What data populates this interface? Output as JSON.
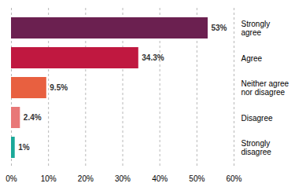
{
  "chart_data": {
    "type": "bar",
    "orientation": "horizontal",
    "categories": [
      "Strongly\nagree",
      "Agree",
      "Neither agree\nnor disagree",
      "Disagree",
      "Strongly\ndisagree"
    ],
    "values": [
      53,
      34.3,
      9.5,
      2.4,
      1
    ],
    "value_labels": [
      "53%",
      "34.3%",
      "9.5%",
      "2.4%",
      "1%"
    ],
    "data_labels": true,
    "colors": [
      "#6B2050",
      "#C01840",
      "#E86040",
      "#E87878",
      "#1AA898"
    ],
    "xlim": [
      0,
      60
    ],
    "xticks": [
      {
        "value": 0,
        "label": "0%"
      },
      {
        "value": 10,
        "label": "10%"
      },
      {
        "value": 20,
        "label": "20%"
      },
      {
        "value": 30,
        "label": "30%"
      },
      {
        "value": 40,
        "label": "40%"
      },
      {
        "value": 50,
        "label": "50%"
      },
      {
        "value": 60,
        "label": "60%"
      }
    ],
    "grid": true
  }
}
